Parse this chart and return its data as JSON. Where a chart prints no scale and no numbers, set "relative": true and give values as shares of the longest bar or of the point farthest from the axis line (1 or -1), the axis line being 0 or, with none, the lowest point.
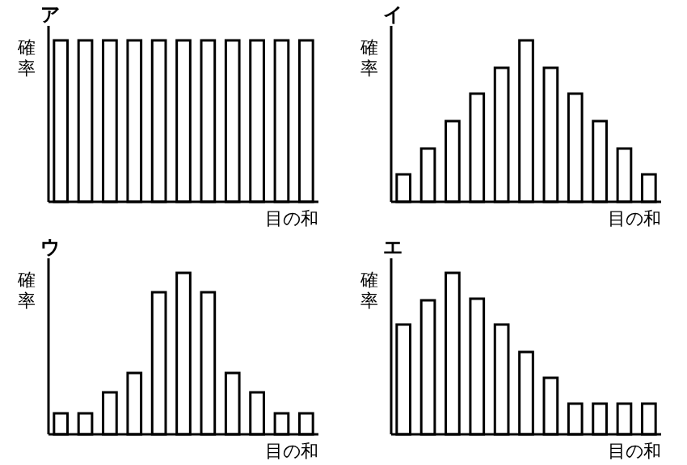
{
  "chart_data": [
    {
      "type": "bar",
      "title": "ア",
      "ylabel": "確率",
      "xlabel": "目の和",
      "relative": true,
      "categories": [
        null,
        null,
        null,
        null,
        null,
        null,
        null,
        null,
        null,
        null,
        null
      ],
      "color": "#ffffff",
      "values": [
        1,
        1,
        1,
        1,
        1,
        1,
        1,
        1,
        1,
        1,
        1
      ]
    },
    {
      "type": "bar",
      "title": "イ",
      "ylabel": "確率",
      "xlabel": "目の和",
      "relative": true,
      "categories": [
        null,
        null,
        null,
        null,
        null,
        null,
        null,
        null,
        null,
        null,
        null
      ],
      "color": "#ffffff",
      "values": [
        0.17,
        0.33,
        0.5,
        0.67,
        0.83,
        1,
        0.83,
        0.67,
        0.5,
        0.33,
        0.17
      ]
    },
    {
      "type": "bar",
      "title": "ウ",
      "ylabel": "確率",
      "xlabel": "目の和",
      "relative": true,
      "categories": [
        null,
        null,
        null,
        null,
        null,
        null,
        null,
        null,
        null,
        null,
        null
      ],
      "color": "#ffffff",
      "values": [
        0.13,
        0.13,
        0.26,
        0.38,
        0.88,
        1,
        0.88,
        0.38,
        0.26,
        0.13,
        0.13
      ]
    },
    {
      "type": "bar",
      "title": "エ",
      "ylabel": "確率",
      "xlabel": "目の和",
      "relative": true,
      "categories": [
        null,
        null,
        null,
        null,
        null,
        null,
        null,
        null,
        null,
        null,
        null
      ],
      "color": "#ffffff",
      "values": [
        0.68,
        0.83,
        1,
        0.84,
        0.68,
        0.51,
        0.35,
        0.19,
        0.19,
        0.19,
        0.19
      ]
    }
  ]
}
